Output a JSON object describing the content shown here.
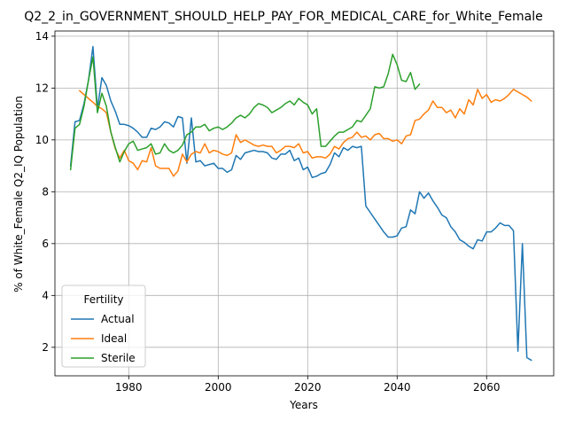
{
  "chart_data": {
    "type": "line",
    "title": "Q2_2_in_GOVERNMENT_SHOULD_HELP_PAY_FOR_MEDICAL_CARE_for_White_Female",
    "xlabel": "Years",
    "ylabel": "% of White_Female Q2_IQ Population",
    "xlim": [
      1963.5,
      2075
    ],
    "ylim": [
      0.9,
      14.2
    ],
    "xticks": [
      1980,
      2000,
      2020,
      2040,
      2060
    ],
    "yticks": [
      2,
      4,
      6,
      8,
      10,
      12,
      14
    ],
    "grid": true,
    "legend": {
      "title": "Fertility",
      "placement": "lower-left"
    },
    "series": [
      {
        "name": "Actual",
        "color": "#1f77b4",
        "points": [
          [
            1967,
            9.0
          ],
          [
            1968,
            10.7
          ],
          [
            1969,
            10.75
          ],
          [
            1970,
            11.4
          ],
          [
            1971,
            12.3
          ],
          [
            1972,
            13.6
          ],
          [
            1973,
            11.2
          ],
          [
            1974,
            12.4
          ],
          [
            1975,
            12.1
          ],
          [
            1976,
            11.5
          ],
          [
            1977,
            11.1
          ],
          [
            1978,
            10.6
          ],
          [
            1979,
            10.6
          ],
          [
            1980,
            10.55
          ],
          [
            1981,
            10.45
          ],
          [
            1982,
            10.3
          ],
          [
            1983,
            10.1
          ],
          [
            1984,
            10.1
          ],
          [
            1985,
            10.45
          ],
          [
            1986,
            10.4
          ],
          [
            1987,
            10.5
          ],
          [
            1988,
            10.7
          ],
          [
            1989,
            10.65
          ],
          [
            1990,
            10.5
          ],
          [
            1991,
            10.9
          ],
          [
            1992,
            10.85
          ],
          [
            1993,
            9.1
          ],
          [
            1994,
            10.85
          ],
          [
            1995,
            9.15
          ],
          [
            1996,
            9.2
          ],
          [
            1997,
            9.0
          ],
          [
            1998,
            9.05
          ],
          [
            1999,
            9.1
          ],
          [
            2000,
            8.9
          ],
          [
            2001,
            8.9
          ],
          [
            2002,
            8.75
          ],
          [
            2003,
            8.85
          ],
          [
            2004,
            9.4
          ],
          [
            2005,
            9.25
          ],
          [
            2006,
            9.5
          ],
          [
            2007,
            9.55
          ],
          [
            2008,
            9.6
          ],
          [
            2009,
            9.55
          ],
          [
            2010,
            9.55
          ],
          [
            2011,
            9.5
          ],
          [
            2012,
            9.3
          ],
          [
            2013,
            9.25
          ],
          [
            2014,
            9.45
          ],
          [
            2015,
            9.45
          ],
          [
            2016,
            9.6
          ],
          [
            2017,
            9.2
          ],
          [
            2018,
            9.3
          ],
          [
            2019,
            8.85
          ],
          [
            2020,
            8.95
          ],
          [
            2021,
            8.55
          ],
          [
            2022,
            8.6
          ],
          [
            2023,
            8.7
          ],
          [
            2024,
            8.75
          ],
          [
            2025,
            9.05
          ],
          [
            2026,
            9.5
          ],
          [
            2027,
            9.35
          ],
          [
            2028,
            9.7
          ],
          [
            2029,
            9.6
          ],
          [
            2030,
            9.75
          ],
          [
            2031,
            9.7
          ],
          [
            2032,
            9.75
          ],
          [
            2033,
            7.45
          ],
          [
            2034,
            7.2
          ],
          [
            2035,
            6.95
          ],
          [
            2036,
            6.7
          ],
          [
            2037,
            6.45
          ],
          [
            2038,
            6.25
          ],
          [
            2039,
            6.25
          ],
          [
            2040,
            6.3
          ],
          [
            2041,
            6.6
          ],
          [
            2042,
            6.65
          ],
          [
            2043,
            7.3
          ],
          [
            2044,
            7.15
          ],
          [
            2045,
            8.0
          ],
          [
            2046,
            7.75
          ],
          [
            2047,
            7.95
          ],
          [
            2048,
            7.65
          ],
          [
            2049,
            7.4
          ],
          [
            2050,
            7.1
          ],
          [
            2051,
            7.0
          ],
          [
            2052,
            6.65
          ],
          [
            2053,
            6.45
          ],
          [
            2054,
            6.15
          ],
          [
            2055,
            6.05
          ],
          [
            2056,
            5.9
          ],
          [
            2057,
            5.8
          ],
          [
            2058,
            6.15
          ],
          [
            2059,
            6.1
          ],
          [
            2060,
            6.45
          ],
          [
            2061,
            6.45
          ],
          [
            2062,
            6.6
          ],
          [
            2063,
            6.8
          ],
          [
            2064,
            6.7
          ],
          [
            2065,
            6.7
          ],
          [
            2066,
            6.5
          ],
          [
            2067,
            1.85
          ],
          [
            2068,
            6.0
          ],
          [
            2069,
            1.6
          ],
          [
            2070,
            1.5
          ]
        ]
      },
      {
        "name": "Ideal",
        "color": "#ff7f0e",
        "points": [
          [
            1969,
            11.9
          ],
          [
            1970,
            11.75
          ],
          [
            1971,
            11.6
          ],
          [
            1972,
            11.45
          ],
          [
            1973,
            11.3
          ],
          [
            1974,
            11.2
          ],
          [
            1975,
            11.05
          ],
          [
            1976,
            10.3
          ],
          [
            1977,
            9.65
          ],
          [
            1978,
            9.3
          ],
          [
            1979,
            9.6
          ],
          [
            1980,
            9.2
          ],
          [
            1981,
            9.1
          ],
          [
            1982,
            8.85
          ],
          [
            1983,
            9.2
          ],
          [
            1984,
            9.15
          ],
          [
            1985,
            9.7
          ],
          [
            1986,
            9.0
          ],
          [
            1987,
            8.9
          ],
          [
            1988,
            8.9
          ],
          [
            1989,
            8.9
          ],
          [
            1990,
            8.6
          ],
          [
            1991,
            8.8
          ],
          [
            1992,
            9.45
          ],
          [
            1993,
            9.15
          ],
          [
            1994,
            9.45
          ],
          [
            1995,
            9.55
          ],
          [
            1996,
            9.5
          ],
          [
            1997,
            9.85
          ],
          [
            1998,
            9.5
          ],
          [
            1999,
            9.6
          ],
          [
            2000,
            9.55
          ],
          [
            2001,
            9.45
          ],
          [
            2002,
            9.4
          ],
          [
            2003,
            9.5
          ],
          [
            2004,
            10.2
          ],
          [
            2005,
            9.9
          ],
          [
            2006,
            10.0
          ],
          [
            2007,
            9.9
          ],
          [
            2008,
            9.8
          ],
          [
            2009,
            9.75
          ],
          [
            2010,
            9.8
          ],
          [
            2011,
            9.75
          ],
          [
            2012,
            9.75
          ],
          [
            2013,
            9.5
          ],
          [
            2014,
            9.6
          ],
          [
            2015,
            9.75
          ],
          [
            2016,
            9.75
          ],
          [
            2017,
            9.7
          ],
          [
            2018,
            9.85
          ],
          [
            2019,
            9.5
          ],
          [
            2020,
            9.55
          ],
          [
            2021,
            9.3
          ],
          [
            2022,
            9.35
          ],
          [
            2023,
            9.35
          ],
          [
            2024,
            9.3
          ],
          [
            2025,
            9.45
          ],
          [
            2026,
            9.75
          ],
          [
            2027,
            9.65
          ],
          [
            2028,
            9.9
          ],
          [
            2029,
            10.05
          ],
          [
            2030,
            10.1
          ],
          [
            2031,
            10.3
          ],
          [
            2032,
            10.1
          ],
          [
            2033,
            10.15
          ],
          [
            2034,
            10.0
          ],
          [
            2035,
            10.2
          ],
          [
            2036,
            10.25
          ],
          [
            2037,
            10.05
          ],
          [
            2038,
            10.05
          ],
          [
            2039,
            9.95
          ],
          [
            2040,
            10.0
          ],
          [
            2041,
            9.85
          ],
          [
            2042,
            10.15
          ],
          [
            2043,
            10.2
          ],
          [
            2044,
            10.75
          ],
          [
            2045,
            10.8
          ],
          [
            2046,
            11.0
          ],
          [
            2047,
            11.15
          ],
          [
            2048,
            11.5
          ],
          [
            2049,
            11.25
          ],
          [
            2050,
            11.25
          ],
          [
            2051,
            11.05
          ],
          [
            2052,
            11.15
          ],
          [
            2053,
            10.85
          ],
          [
            2054,
            11.2
          ],
          [
            2055,
            11.0
          ],
          [
            2056,
            11.55
          ],
          [
            2057,
            11.35
          ],
          [
            2058,
            11.95
          ],
          [
            2059,
            11.6
          ],
          [
            2060,
            11.75
          ],
          [
            2061,
            11.45
          ],
          [
            2062,
            11.55
          ],
          [
            2063,
            11.5
          ],
          [
            2064,
            11.6
          ],
          [
            2065,
            11.75
          ],
          [
            2066,
            11.95
          ],
          [
            2067,
            11.85
          ],
          [
            2068,
            11.75
          ],
          [
            2069,
            11.65
          ],
          [
            2070,
            11.5
          ]
        ]
      },
      {
        "name": "Sterile",
        "color": "#2ca02c",
        "points": [
          [
            1967,
            8.85
          ],
          [
            1968,
            10.45
          ],
          [
            1969,
            10.6
          ],
          [
            1970,
            11.3
          ],
          [
            1971,
            12.3
          ],
          [
            1972,
            13.2
          ],
          [
            1973,
            11.05
          ],
          [
            1974,
            11.8
          ],
          [
            1975,
            11.3
          ],
          [
            1976,
            10.3
          ],
          [
            1977,
            9.7
          ],
          [
            1978,
            9.15
          ],
          [
            1979,
            9.55
          ],
          [
            1980,
            9.85
          ],
          [
            1981,
            9.95
          ],
          [
            1982,
            9.6
          ],
          [
            1983,
            9.65
          ],
          [
            1984,
            9.7
          ],
          [
            1985,
            9.85
          ],
          [
            1986,
            9.45
          ],
          [
            1987,
            9.5
          ],
          [
            1988,
            9.85
          ],
          [
            1989,
            9.6
          ],
          [
            1990,
            9.5
          ],
          [
            1991,
            9.6
          ],
          [
            1992,
            9.8
          ],
          [
            1993,
            10.2
          ],
          [
            1994,
            10.3
          ],
          [
            1995,
            10.5
          ],
          [
            1996,
            10.5
          ],
          [
            1997,
            10.6
          ],
          [
            1998,
            10.35
          ],
          [
            1999,
            10.45
          ],
          [
            2000,
            10.5
          ],
          [
            2001,
            10.4
          ],
          [
            2002,
            10.5
          ],
          [
            2003,
            10.65
          ],
          [
            2004,
            10.85
          ],
          [
            2005,
            10.95
          ],
          [
            2006,
            10.85
          ],
          [
            2007,
            11.0
          ],
          [
            2008,
            11.25
          ],
          [
            2009,
            11.4
          ],
          [
            2010,
            11.35
          ],
          [
            2011,
            11.25
          ],
          [
            2012,
            11.05
          ],
          [
            2013,
            11.15
          ],
          [
            2014,
            11.25
          ],
          [
            2015,
            11.4
          ],
          [
            2016,
            11.5
          ],
          [
            2017,
            11.35
          ],
          [
            2018,
            11.6
          ],
          [
            2019,
            11.45
          ],
          [
            2020,
            11.35
          ],
          [
            2021,
            11.0
          ],
          [
            2022,
            11.2
          ],
          [
            2023,
            9.75
          ],
          [
            2024,
            9.75
          ],
          [
            2025,
            9.95
          ],
          [
            2026,
            10.15
          ],
          [
            2027,
            10.3
          ],
          [
            2028,
            10.3
          ],
          [
            2029,
            10.4
          ],
          [
            2030,
            10.5
          ],
          [
            2031,
            10.75
          ],
          [
            2032,
            10.7
          ],
          [
            2033,
            10.95
          ],
          [
            2034,
            11.2
          ],
          [
            2035,
            12.05
          ],
          [
            2036,
            12.0
          ],
          [
            2037,
            12.05
          ],
          [
            2038,
            12.55
          ],
          [
            2039,
            13.3
          ],
          [
            2040,
            12.9
          ],
          [
            2041,
            12.3
          ],
          [
            2042,
            12.25
          ],
          [
            2043,
            12.6
          ],
          [
            2044,
            11.95
          ],
          [
            2045,
            12.15
          ]
        ]
      }
    ]
  }
}
